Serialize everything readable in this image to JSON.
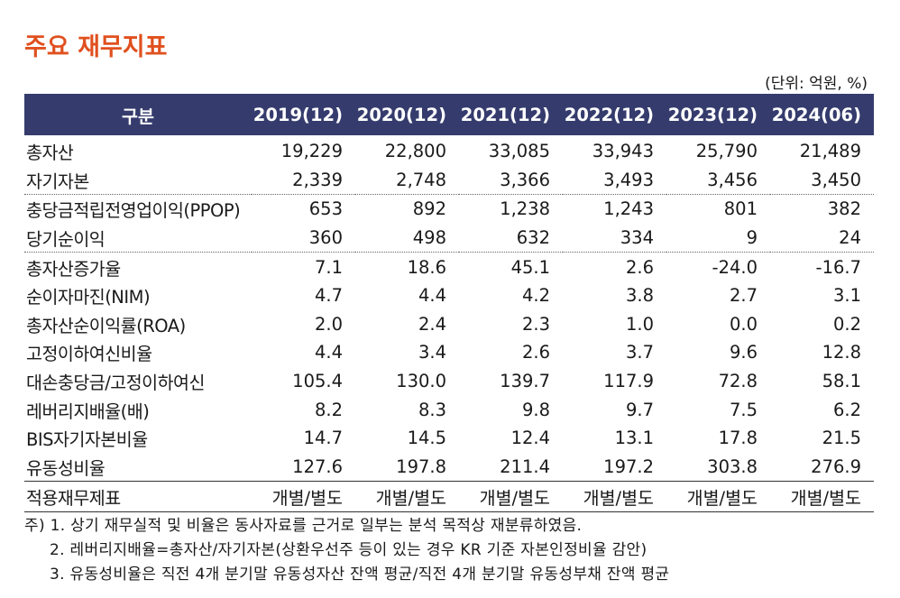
{
  "title": "주요 재무지표",
  "unit_note": "(단위: 억원, %)",
  "table": {
    "header_label": "구분",
    "columns": [
      "2019(12)",
      "2020(12)",
      "2021(12)",
      "2022(12)",
      "2023(12)",
      "2024(06)"
    ],
    "rows": [
      {
        "label": "총자산",
        "values": [
          "19,229",
          "22,800",
          "33,085",
          "33,943",
          "25,790",
          "21,489"
        ]
      },
      {
        "label": "자기자본",
        "values": [
          "2,339",
          "2,748",
          "3,366",
          "3,493",
          "3,456",
          "3,450"
        ]
      },
      {
        "label": "충당금적립전영업이익(PPOP)",
        "values": [
          "653",
          "892",
          "1,238",
          "1,243",
          "801",
          "382"
        ]
      },
      {
        "label": "당기순이익",
        "values": [
          "360",
          "498",
          "632",
          "334",
          "9",
          "24"
        ]
      },
      {
        "label": "총자산증가율",
        "values": [
          "7.1",
          "18.6",
          "45.1",
          "2.6",
          "-24.0",
          "-16.7"
        ]
      },
      {
        "label": "순이자마진(NIM)",
        "values": [
          "4.7",
          "4.4",
          "4.2",
          "3.8",
          "2.7",
          "3.1"
        ]
      },
      {
        "label": "총자산순이익률(ROA)",
        "values": [
          "2.0",
          "2.4",
          "2.3",
          "1.0",
          "0.0",
          "0.2"
        ]
      },
      {
        "label": "고정이하여신비율",
        "values": [
          "4.4",
          "3.4",
          "2.6",
          "3.7",
          "9.6",
          "12.8"
        ]
      },
      {
        "label": "대손충당금/고정이하여신",
        "values": [
          "105.4",
          "130.0",
          "139.7",
          "117.9",
          "72.8",
          "58.1"
        ]
      },
      {
        "label": "레버리지배율(배)",
        "values": [
          "8.2",
          "8.3",
          "9.8",
          "9.7",
          "7.5",
          "6.2"
        ]
      },
      {
        "label": "BIS자기자본비율",
        "values": [
          "14.7",
          "14.5",
          "12.4",
          "13.1",
          "17.8",
          "21.5"
        ]
      },
      {
        "label": "유동성비율",
        "values": [
          "127.6",
          "197.8",
          "211.4",
          "197.2",
          "303.8",
          "276.9"
        ]
      },
      {
        "label": "적용재무제표",
        "values": [
          "개별/별도",
          "개별/별도",
          "개별/별도",
          "개별/별도",
          "개별/별도",
          "개별/별도"
        ]
      }
    ]
  },
  "notes": [
    "주) 1. 상기 재무실적 및 비율은 동사자료를 근거로 일부는 분석 목적상 재분류하였음.",
    "2. 레버리지배율=총자산/자기자본(상환우선주 등이 있는 경우 KR 기준 자본인정비율 감안)",
    "3. 유동성비율은 직전 4개 분기말 유동성자산 잔액 평균/직전 4개 분기말 유동성부채 잔액 평균"
  ]
}
